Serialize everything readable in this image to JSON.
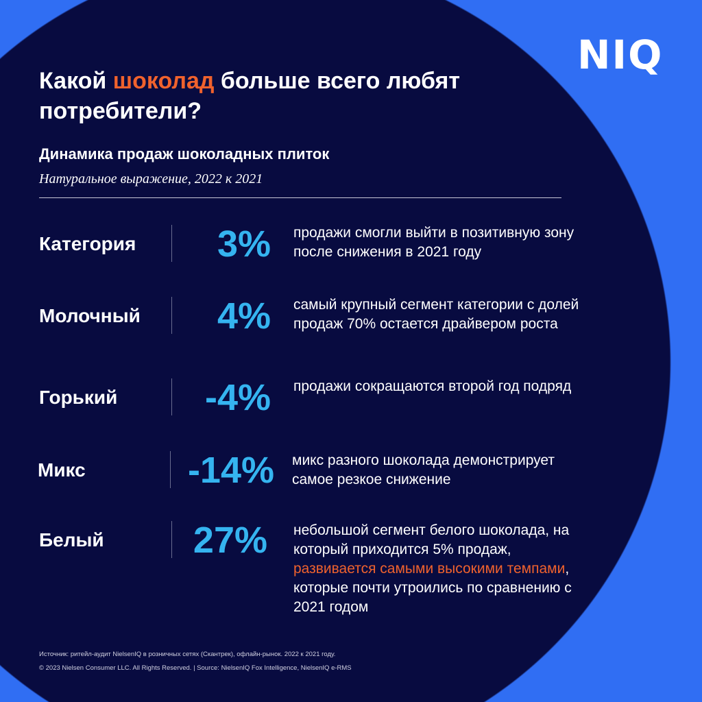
{
  "logo": "NIQ",
  "title": {
    "before": "Какой ",
    "accent": "шоколад",
    "after": " больше всего любят потребители?"
  },
  "subtitle": "Динамика продаж шоколадных плиток",
  "subtitle2": "Натуральное выражение, 2022 к 2021",
  "rows": [
    {
      "label": "Категория",
      "value": "3%",
      "desc": "продажи смогли выйти в позитивную зону после снижения в 2021 году"
    },
    {
      "label": "Молочный",
      "value": "4%",
      "desc": "самый крупный сегмент категории с долей продаж 70% остается драйвером роста"
    },
    {
      "label": "Горький",
      "value": "-4%",
      "desc": "продажи сокращаются второй год подряд"
    },
    {
      "label": "Микс",
      "value": "-14%",
      "desc": "микс разного шоколада демонстрирует самое резкое снижение"
    },
    {
      "label": "Белый",
      "value": "27%",
      "desc_before": "небольшой сегмент белого шоколада, на который приходится 5% продаж, ",
      "desc_accent": "развивается самыми высокими темпами",
      "desc_after": ", которые почти утроились по сравнению с 2021 годом"
    }
  ],
  "footer": {
    "source": "Источник: ритейл-аудит NielsenIQ в розничных сетях (Скантрек), офлайн-рынок. 2022 к 2021 году.",
    "copyright": "© 2023 Nielsen Consumer LLC. All Rights Reserved. | Source: NielsenIQ Fox Intelligence, NielsenIQ e-RMS"
  },
  "colors": {
    "background": "#306ef3",
    "circle": "#080b40",
    "accent": "#f0622d",
    "value": "#35b4f0"
  }
}
